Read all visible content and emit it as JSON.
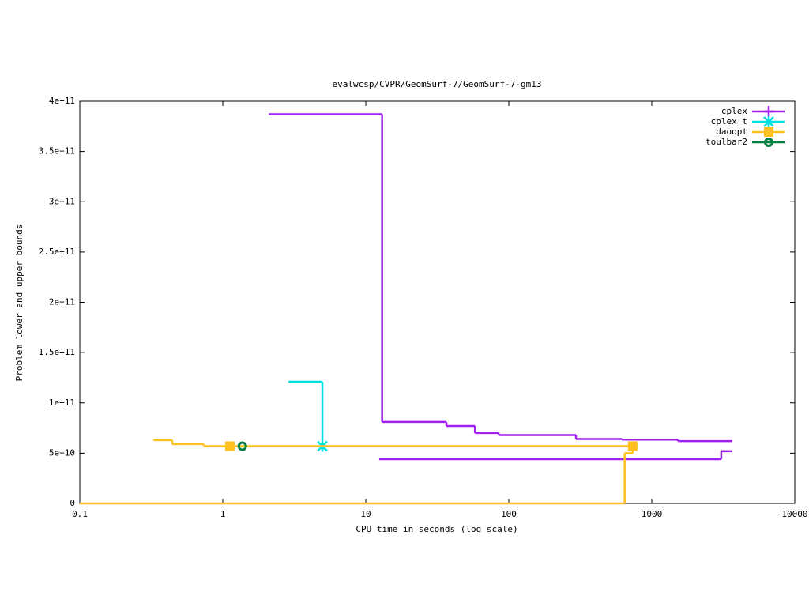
{
  "chart_data": {
    "type": "step",
    "title": "evalwcsp/CVPR/GeomSurf-7/GeomSurf-7-gm13",
    "x_label": "CPU time in seconds (log scale)",
    "y_label": "Problem lower and upper bounds",
    "x_log": true,
    "xlim": [
      0.1,
      10000
    ],
    "xticks": [
      0.1,
      1,
      10,
      100,
      1000,
      10000
    ],
    "ylim": [
      0,
      400000000000.0
    ],
    "yticks": [
      0,
      {
        "value": 50000000000.0,
        "label": "5e+10"
      },
      {
        "value": 100000000000.0,
        "label": "1e+11"
      },
      {
        "value": 150000000000.0,
        "label": "1.5e+11"
      },
      {
        "value": 200000000000.0,
        "label": "2e+11"
      },
      {
        "value": 250000000000.0,
        "label": "2.5e+11"
      },
      {
        "value": 300000000000.0,
        "label": "3e+11"
      },
      {
        "value": 350000000000.0,
        "label": "3.5e+11"
      },
      {
        "value": 400000000000.0,
        "label": "4e+11"
      }
    ],
    "legend": "top-right",
    "series": [
      {
        "name": "cplex",
        "color": "#a020f0",
        "marker": "plus",
        "bounds": [
          {
            "x": [
              2.1,
              13,
              36.6,
              58,
              85,
              295,
              617,
              1520,
              3650
            ],
            "values": [
              387000000000.0,
              81000000000.0,
              77000000000.0,
              70000000000.0,
              68000000000.0,
              64000000000.0,
              63500000000.0,
              62000000000.0,
              62000000000.0
            ]
          },
          {
            "x": [
              12.4,
              3060,
              3650
            ],
            "values": [
              44000000000.0,
              52000000000.0,
              52000000000.0
            ]
          }
        ]
      },
      {
        "name": "cplex_t",
        "color": "#00e0e0",
        "marker": "cross",
        "bounds": [
          {
            "x": [
              2.88,
              4.97
            ],
            "values": [
              121000000000.0,
              57000000000.0
            ]
          }
        ],
        "points": {
          "x": [
            4.97
          ],
          "values": [
            57000000000.0
          ]
        }
      },
      {
        "name": "daoopt",
        "color": "#ffc020",
        "marker": "square",
        "bounds": [
          {
            "x": [
              0.327,
              0.443,
              0.736,
              736
            ],
            "values": [
              63000000000.0,
              59000000000.0,
              57000000000.0,
              57000000000.0
            ]
          },
          {
            "x": [
              0.1,
              646,
              736
            ],
            "values": [
              0,
              50000000000.0,
              57000000000.0
            ]
          }
        ],
        "points": {
          "x": [
            1.12,
            736
          ],
          "values": [
            57000000000.0,
            57000000000.0
          ]
        }
      },
      {
        "name": "toulbar2",
        "color": "#008040",
        "marker": "circle",
        "points": {
          "x": [
            1.37
          ],
          "values": [
            57000000000.0
          ]
        }
      }
    ]
  }
}
